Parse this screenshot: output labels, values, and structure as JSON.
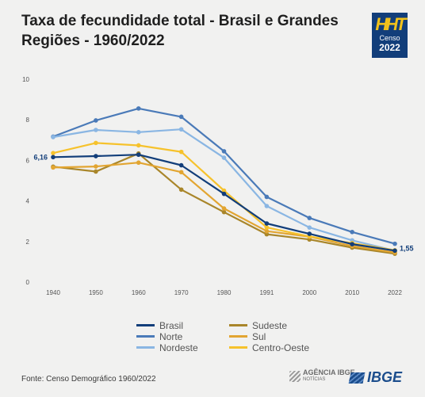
{
  "title": "Taxa de fecundidade total - Brasil e Grandes Regiões - 1960/2022",
  "logo": {
    "marks": "HHT",
    "word": "Censo",
    "year": "2022"
  },
  "source": "Fonte: Censo Demográfico 1960/2022",
  "footer": {
    "agencia_name": "AGÊNCIA IBGE",
    "agencia_sub": "NOTÍCIAS",
    "ibge_logo": "IBGE"
  },
  "chart_data": {
    "type": "line",
    "title": "Taxa de fecundidade total - Brasil e Grandes Regiões - 1960/2022",
    "xlabel": "",
    "ylabel": "",
    "x": [
      "1940",
      "1950",
      "1960",
      "1970",
      "1980",
      "1991",
      "2000",
      "2010",
      "2022"
    ],
    "ylim": [
      0,
      10
    ],
    "yticks": [
      0,
      2,
      4,
      6,
      8,
      10
    ],
    "grid": false,
    "legend": "bottom",
    "series": [
      {
        "name": "Brasil",
        "color": "#123e7a",
        "values": [
          6.16,
          6.21,
          6.28,
          5.76,
          4.35,
          2.89,
          2.38,
          1.87,
          1.55
        ]
      },
      {
        "name": "Norte",
        "color": "#4a7ab8",
        "values": [
          7.17,
          7.97,
          8.56,
          8.15,
          6.45,
          4.2,
          3.16,
          2.47,
          1.89
        ]
      },
      {
        "name": "Nordeste",
        "color": "#8ab6e3",
        "values": [
          7.15,
          7.5,
          7.39,
          7.53,
          6.13,
          3.75,
          2.69,
          2.06,
          1.55
        ]
      },
      {
        "name": "Sudeste",
        "color": "#a9862a",
        "values": [
          5.69,
          5.45,
          6.34,
          4.56,
          3.45,
          2.36,
          2.1,
          1.7,
          1.4
        ]
      },
      {
        "name": "Sul",
        "color": "#e2a531",
        "values": [
          5.65,
          5.7,
          5.89,
          5.42,
          3.63,
          2.51,
          2.24,
          1.78,
          1.46
        ]
      },
      {
        "name": "Centro-Oeste",
        "color": "#f6c22c",
        "values": [
          6.36,
          6.86,
          6.74,
          6.42,
          4.51,
          2.69,
          2.25,
          1.92,
          1.57
        ]
      }
    ],
    "annotations": [
      {
        "series": "Brasil",
        "x": "1940",
        "label": "6,16"
      },
      {
        "series": "Brasil",
        "x": "2022",
        "label": "1,55"
      }
    ]
  }
}
